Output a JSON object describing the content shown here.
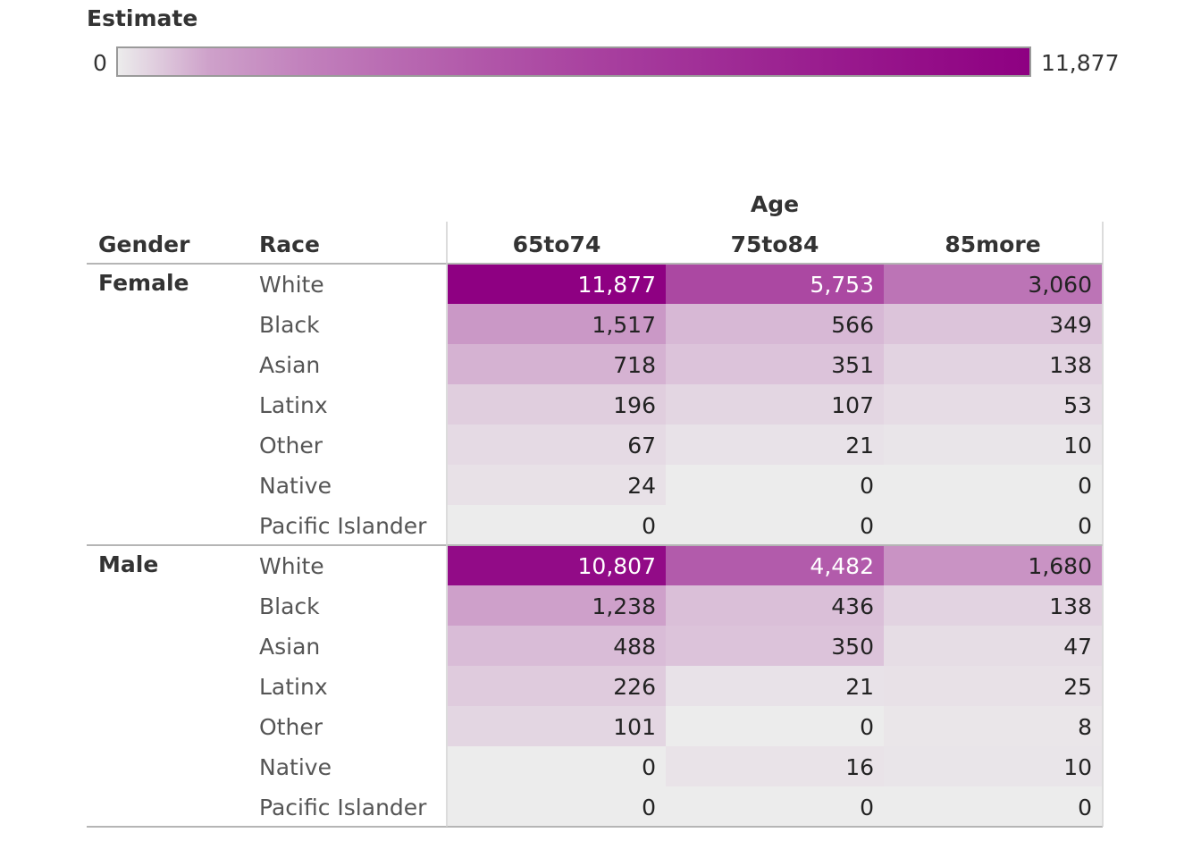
{
  "legend": {
    "title": "Estimate",
    "min_label": "0",
    "max_label": "11,877",
    "min": 0,
    "max": 11877,
    "color_low": "#ececec",
    "color_high": "#8e0082"
  },
  "chart_data": {
    "type": "heatmap",
    "column_group_header": "Age",
    "row_headers": [
      "Gender",
      "Race"
    ],
    "columns": [
      "65to74",
      "75to84",
      "85more"
    ],
    "groups": [
      {
        "name": "Female",
        "rows": [
          {
            "race": "White",
            "values": [
              11877,
              5753,
              3060
            ]
          },
          {
            "race": "Black",
            "values": [
              1517,
              566,
              349
            ]
          },
          {
            "race": "Asian",
            "values": [
              718,
              351,
              138
            ]
          },
          {
            "race": "Latinx",
            "values": [
              196,
              107,
              53
            ]
          },
          {
            "race": "Other",
            "values": [
              67,
              21,
              10
            ]
          },
          {
            "race": "Native",
            "values": [
              24,
              0,
              0
            ]
          },
          {
            "race": "Pacific Islander",
            "values": [
              0,
              0,
              0
            ]
          }
        ]
      },
      {
        "name": "Male",
        "rows": [
          {
            "race": "White",
            "values": [
              10807,
              4482,
              1680
            ]
          },
          {
            "race": "Black",
            "values": [
              1238,
              436,
              138
            ]
          },
          {
            "race": "Asian",
            "values": [
              488,
              350,
              47
            ]
          },
          {
            "race": "Latinx",
            "values": [
              226,
              21,
              25
            ]
          },
          {
            "race": "Other",
            "values": [
              101,
              0,
              8
            ]
          },
          {
            "race": "Native",
            "values": [
              0,
              16,
              10
            ]
          },
          {
            "race": "Pacific Islander",
            "values": [
              0,
              0,
              0
            ]
          }
        ]
      }
    ]
  }
}
